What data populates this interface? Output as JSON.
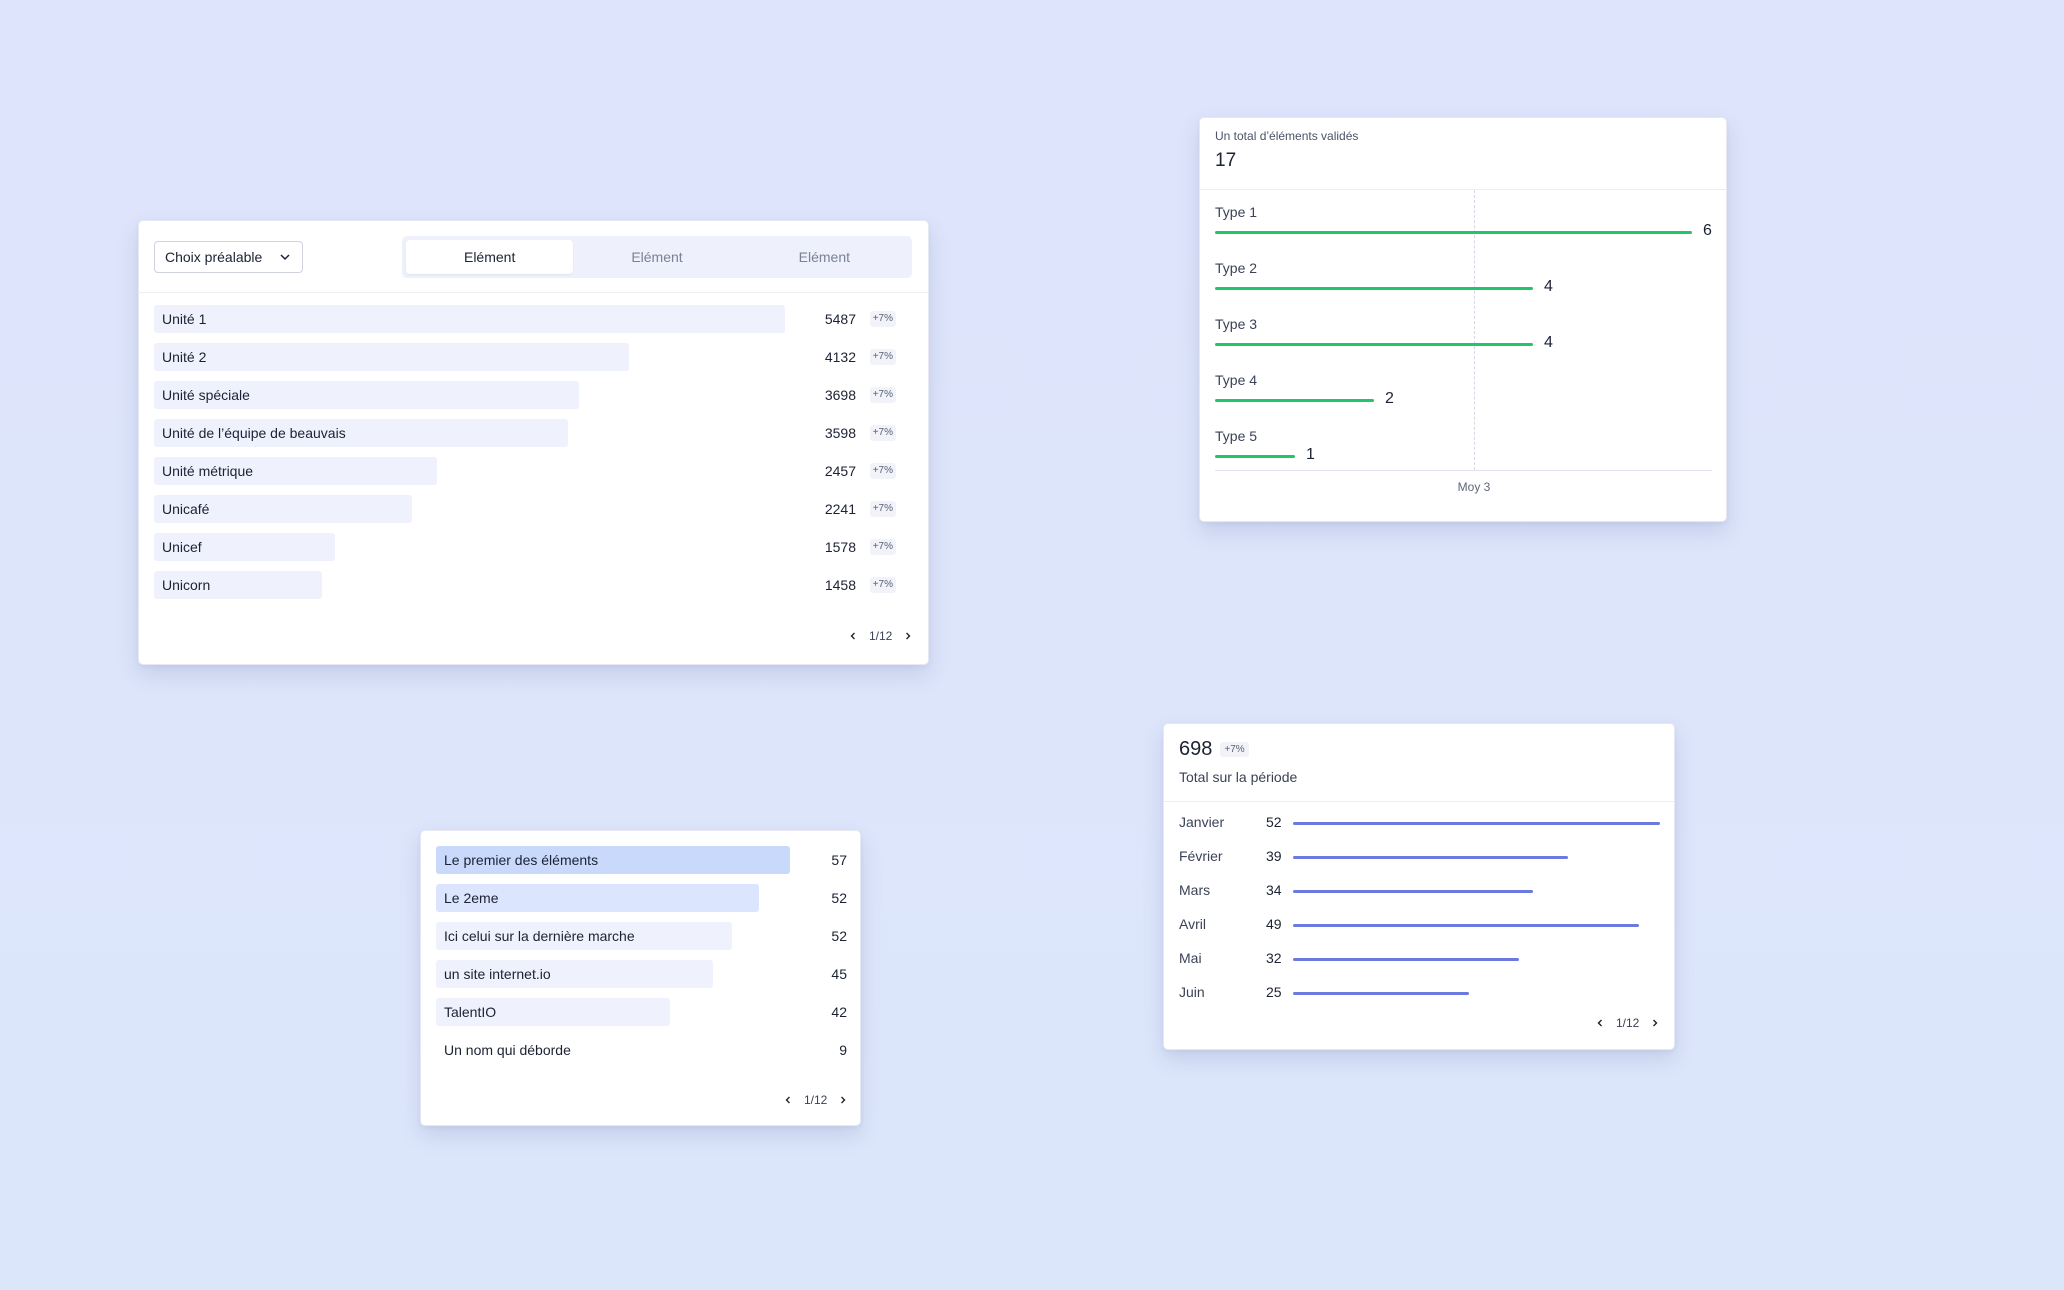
{
  "card1": {
    "select_label": "Choix préalable",
    "tabs": [
      {
        "label": "Elément",
        "active": true
      },
      {
        "label": "Elément",
        "active": false
      },
      {
        "label": "Elément",
        "active": false
      }
    ],
    "rows": [
      {
        "label": "Unité 1",
        "value": "5487",
        "delta": "+7%"
      },
      {
        "label": "Unité 2",
        "value": "4132",
        "delta": "+7%"
      },
      {
        "label": "Unité spéciale",
        "value": "3698",
        "delta": "+7%"
      },
      {
        "label": "Unité de l’équipe de beauvais",
        "value": "3598",
        "delta": "+7%"
      },
      {
        "label": "Unité métrique",
        "value": "2457",
        "delta": "+7%"
      },
      {
        "label": "Unicafé",
        "value": "2241",
        "delta": "+7%"
      },
      {
        "label": "Unicef",
        "value": "1578",
        "delta": "+7%"
      },
      {
        "label": "Unicorn",
        "value": "1458",
        "delta": "+7%"
      }
    ],
    "bar_color": "#eff1fd",
    "pager": "1/12"
  },
  "card2": {
    "subtitle": "Un total d’éléments validés",
    "total": "17",
    "line_color": "#22c56a",
    "reference_label": "Moy 3",
    "reference_value": 3,
    "max_value": 6,
    "rows": [
      {
        "label": "Type 1",
        "value": 6
      },
      {
        "label": "Type 2",
        "value": 4
      },
      {
        "label": "Type 3",
        "value": 4
      },
      {
        "label": "Type 4",
        "value": 2
      },
      {
        "label": "Type 5",
        "value": 1
      }
    ]
  },
  "card3": {
    "rows": [
      {
        "label": "Le premier des éléments",
        "value": "57",
        "highlight": "strong"
      },
      {
        "label": "Le 2eme",
        "value": "52",
        "highlight": "medium"
      },
      {
        "label": "Ici celui sur la dernière marche",
        "value": "52",
        "highlight": "none"
      },
      {
        "label": "un site internet.io",
        "value": "45",
        "highlight": "none"
      },
      {
        "label": "TalentIO",
        "value": "42",
        "highlight": "none"
      },
      {
        "label": "Un nom qui déborde",
        "value": "9",
        "highlight": "none"
      }
    ],
    "bar_colors": {
      "strong": "#c9d9fb",
      "medium": "#dbe5fd",
      "none": "#eff1fd"
    },
    "pager": "1/12"
  },
  "card4": {
    "total": "698",
    "delta": "+7%",
    "subtitle": "Total sur la période",
    "line_color": "#6c7ae0",
    "months": [
      {
        "label": "Janvier",
        "value": 52
      },
      {
        "label": "Février",
        "value": 39
      },
      {
        "label": "Mars",
        "value": 34
      },
      {
        "label": "Avril",
        "value": 49
      },
      {
        "label": "Mai",
        "value": 32
      },
      {
        "label": "Juin",
        "value": 25
      }
    ],
    "pager": "1/12"
  }
}
